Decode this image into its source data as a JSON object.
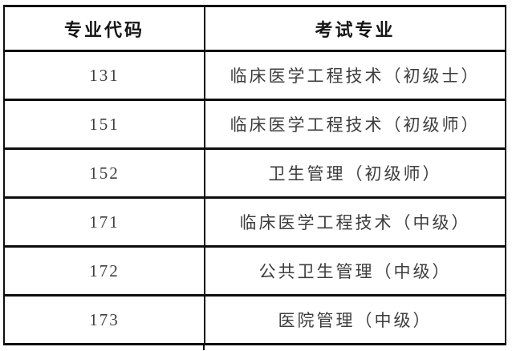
{
  "table": {
    "columns": [
      {
        "label": "专业代码"
      },
      {
        "label": "考试专业"
      }
    ],
    "rows": [
      {
        "code": "131",
        "major": "临床医学工程技术（初级士）"
      },
      {
        "code": "151",
        "major": "临床医学工程技术（初级师）"
      },
      {
        "code": "152",
        "major": "卫生管理（初级师）"
      },
      {
        "code": "171",
        "major": "临床医学工程技术（中级）"
      },
      {
        "code": "172",
        "major": "公共卫生管理（中级）"
      },
      {
        "code": "173",
        "major": "医院管理（中级）"
      }
    ],
    "colors": {
      "border": "#0d0d0d",
      "header_text": "#161616",
      "body_text": "#3d3d3d",
      "background": "#ffffff"
    }
  }
}
